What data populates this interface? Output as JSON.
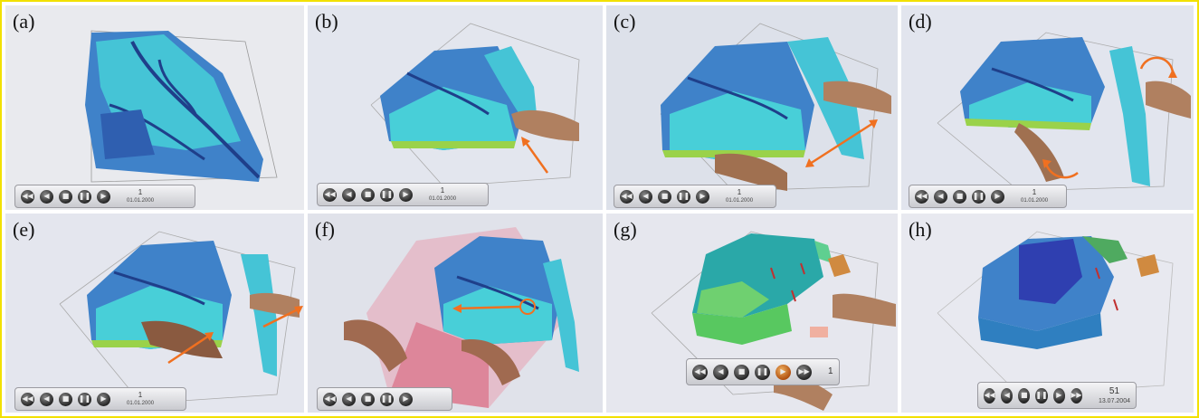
{
  "figure": {
    "panels": [
      {
        "label": "(a)",
        "step": "1",
        "date": "01.01.2000"
      },
      {
        "label": "(b)",
        "step": "1",
        "date": "01.01.2000"
      },
      {
        "label": "(c)",
        "step": "1",
        "date": "01.01.2000"
      },
      {
        "label": "(d)",
        "step": "1",
        "date": "01.01.2000"
      },
      {
        "label": "(e)",
        "step": "1",
        "date": "01.01.2000"
      },
      {
        "label": "(f)",
        "step": "",
        "date": ""
      },
      {
        "label": "(g)",
        "step": "1",
        "date": ""
      },
      {
        "label": "(h)",
        "step": "51",
        "date": "13.07.2004"
      }
    ]
  },
  "toolbar": {
    "buttons": [
      {
        "name": "rewind-icon",
        "glyph": "◀◀"
      },
      {
        "name": "step-back-icon",
        "glyph": "◀"
      },
      {
        "name": "stop-icon",
        "glyph": "■"
      },
      {
        "name": "pause-icon",
        "glyph": "❚❚"
      },
      {
        "name": "play-icon",
        "glyph": "▶"
      },
      {
        "name": "fast-forward-icon",
        "glyph": "▶▶"
      }
    ]
  },
  "colors": {
    "frame_border": "#f2e100",
    "reservoir_blue": "#2f6fc0",
    "reservoir_cyan": "#3fd0d8",
    "reservoir_green": "#8fd25a",
    "gesture_arrow": "#f07020",
    "selection_box": "#e8a0b0"
  }
}
